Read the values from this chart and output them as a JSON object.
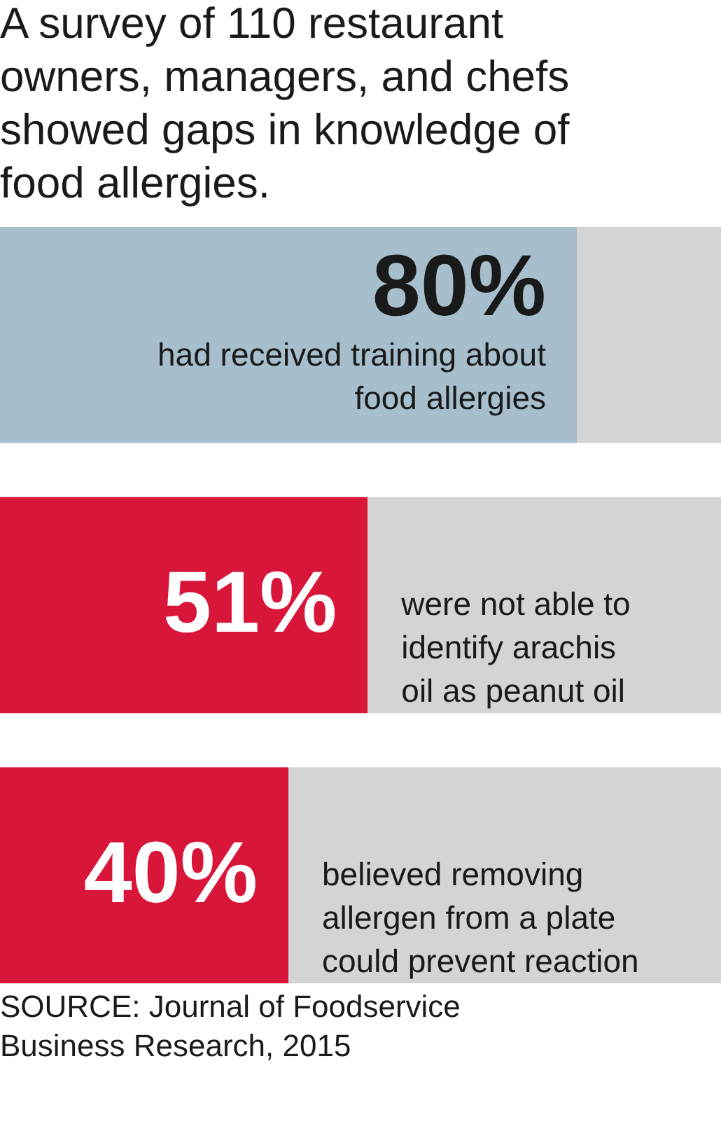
{
  "chart_data": {
    "type": "bar",
    "orientation": "horizontal",
    "stacked": true,
    "title": "A survey of 110 restaurant owners, managers, and chefs showed gaps in knowledge of food allergies.",
    "categories": [
      "had received training about food allergies",
      "were not able to identify arachis oil as peanut oil",
      "believed removing allergen from a plate could prevent reaction"
    ],
    "series": [
      {
        "colors": [
          "#a7bfcc",
          "#d7163a",
          "#d7163a"
        ],
        "values": [
          80,
          51,
          40
        ],
        "value_labels": [
          "80%",
          "51%",
          "40%"
        ]
      },
      {
        "color": "#d4d4d4",
        "values": [
          20,
          49,
          60
        ]
      }
    ],
    "xlim": [
      0,
      100
    ],
    "tick_labels": false,
    "annotations": [
      "SOURCE: Journal of Foodservice Business Research, 2015"
    ]
  }
}
